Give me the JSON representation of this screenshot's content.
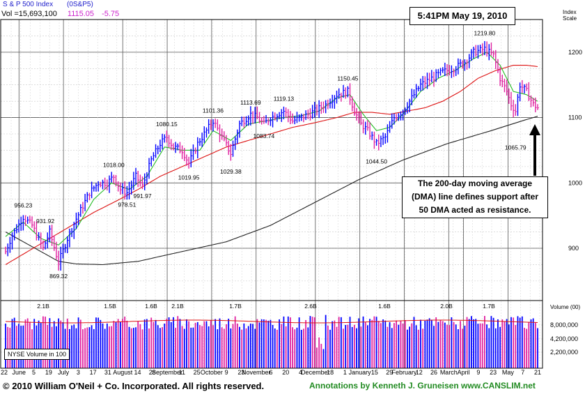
{
  "header": {
    "title": "S & P 500 Index",
    "symbol": "(0S&P5)",
    "vol_label": "Vol =15,693,100",
    "price": "1115.05",
    "change": "-5.75",
    "timestamp": "5:41PM May 19, 2010",
    "index_scale_label": [
      "Index",
      "Scale"
    ],
    "volume_axis_title": "Volume (00)"
  },
  "annotation": {
    "text_lines": [
      "The 200-day moving average",
      "(DMA) line defines support after",
      "50 DMA acted as resistance."
    ]
  },
  "volume_legend": "NYSE Volume in 100",
  "footer": {
    "copyright": "© 2010 William O'Neil + Co. Incorporated. All rights reserved.",
    "credit": "Annotations by Kenneth J. Gruneisen www.CANSLIM.net"
  },
  "colors": {
    "up_bar": "#0000ff",
    "down_bar": "#e020a0",
    "ma50": "#dd1111",
    "ma10": "#22bb22",
    "ma200": "#222222"
  },
  "chart_data": {
    "type": "bar",
    "price_axis": {
      "ticks": [
        900,
        1000,
        1100,
        1200
      ],
      "ylim": [
        820,
        1250
      ]
    },
    "volume_axis": {
      "ticks": [
        "8,000,000",
        "4,200,000",
        "2,200,000"
      ]
    },
    "date_ticks": [
      "22",
      "June",
      "5",
      "19",
      "July",
      "3",
      "17",
      "31",
      "August",
      "14",
      "28",
      "September",
      "11",
      "25",
      "October",
      "9",
      "23",
      "November",
      "6",
      "20",
      "4",
      "December",
      "18",
      "1",
      "January",
      "15",
      "29",
      "February",
      "12",
      "26",
      "March",
      "April",
      "9",
      "23",
      "May",
      "7",
      "21"
    ],
    "month_dividers": [
      "June",
      "July",
      "August",
      "September",
      "October",
      "November",
      "December",
      "January",
      "February",
      "March",
      "April",
      "May"
    ],
    "price_labels": [
      {
        "label": "956.23",
        "date_index": 8,
        "value": 956.23,
        "pos": "top"
      },
      {
        "label": "931.92",
        "date_index": 18,
        "value": 931.92,
        "pos": "top"
      },
      {
        "label": "869.32",
        "date_index": 24,
        "value": 869.32,
        "pos": "bottom"
      },
      {
        "label": "1018.00",
        "date_index": 49,
        "value": 1018.0,
        "pos": "top"
      },
      {
        "label": "978.51",
        "date_index": 55,
        "value": 978.51,
        "pos": "bottom"
      },
      {
        "label": "991.97",
        "date_index": 62,
        "value": 991.97,
        "pos": "bottom"
      },
      {
        "label": "1080.15",
        "date_index": 73,
        "value": 1080.15,
        "pos": "top"
      },
      {
        "label": "1019.95",
        "date_index": 83,
        "value": 1019.95,
        "pos": "bottom"
      },
      {
        "label": "1101.36",
        "date_index": 94,
        "value": 1101.36,
        "pos": "top"
      },
      {
        "label": "1029.38",
        "date_index": 102,
        "value": 1029.38,
        "pos": "bottom"
      },
      {
        "label": "1113.69",
        "date_index": 111,
        "value": 1113.69,
        "pos": "top"
      },
      {
        "label": "1083.74",
        "date_index": 117,
        "value": 1083.74,
        "pos": "bottom"
      },
      {
        "label": "1119.13",
        "date_index": 126,
        "value": 1119.13,
        "pos": "top"
      },
      {
        "label": "1150.45",
        "date_index": 155,
        "value": 1150.45,
        "pos": "top"
      },
      {
        "label": "1044.50",
        "date_index": 168,
        "value": 1044.5,
        "pos": "bottom"
      },
      {
        "label": "1219.80",
        "date_index": 217,
        "value": 1219.8,
        "pos": "top"
      },
      {
        "label": "1065.79",
        "date_index": 231,
        "value": 1065.79,
        "pos": "bottom"
      }
    ],
    "volume_labels": [
      "2.1B",
      "1.5B",
      "1.6B",
      "2.1B",
      "1.7B",
      "2.6B",
      "1.6B",
      "2.0B",
      "1.7B"
    ],
    "anchors": [
      [
        0,
        895
      ],
      [
        3,
        920
      ],
      [
        8,
        948
      ],
      [
        12,
        935
      ],
      [
        17,
        900
      ],
      [
        20,
        925
      ],
      [
        24,
        878
      ],
      [
        28,
        915
      ],
      [
        32,
        945
      ],
      [
        38,
        985
      ],
      [
        42,
        1000
      ],
      [
        46,
        1000
      ],
      [
        49,
        1010
      ],
      [
        52,
        990
      ],
      [
        55,
        985
      ],
      [
        59,
        1010
      ],
      [
        62,
        995
      ],
      [
        66,
        1035
      ],
      [
        70,
        1060
      ],
      [
        73,
        1070
      ],
      [
        76,
        1055
      ],
      [
        80,
        1050
      ],
      [
        83,
        1030
      ],
      [
        87,
        1060
      ],
      [
        91,
        1080
      ],
      [
        94,
        1095
      ],
      [
        98,
        1070
      ],
      [
        102,
        1045
      ],
      [
        106,
        1090
      ],
      [
        111,
        1105
      ],
      [
        114,
        1100
      ],
      [
        117,
        1090
      ],
      [
        120,
        1100
      ],
      [
        126,
        1110
      ],
      [
        130,
        1095
      ],
      [
        134,
        1100
      ],
      [
        140,
        1110
      ],
      [
        145,
        1120
      ],
      [
        150,
        1135
      ],
      [
        155,
        1140
      ],
      [
        158,
        1110
      ],
      [
        161,
        1090
      ],
      [
        164,
        1080
      ],
      [
        168,
        1060
      ],
      [
        172,
        1070
      ],
      [
        176,
        1100
      ],
      [
        180,
        1110
      ],
      [
        184,
        1130
      ],
      [
        188,
        1150
      ],
      [
        193,
        1160
      ],
      [
        198,
        1170
      ],
      [
        203,
        1175
      ],
      [
        208,
        1185
      ],
      [
        212,
        1200
      ],
      [
        217,
        1205
      ],
      [
        221,
        1195
      ],
      [
        224,
        1160
      ],
      [
        227,
        1140
      ],
      [
        229,
        1120
      ],
      [
        231,
        1110
      ],
      [
        233,
        1150
      ],
      [
        236,
        1140
      ],
      [
        239,
        1120
      ],
      [
        241,
        1115
      ]
    ],
    "ma10_anchors": [
      [
        0,
        918
      ],
      [
        8,
        940
      ],
      [
        16,
        915
      ],
      [
        24,
        905
      ],
      [
        32,
        930
      ],
      [
        40,
        975
      ],
      [
        48,
        1000
      ],
      [
        56,
        990
      ],
      [
        64,
        1010
      ],
      [
        72,
        1055
      ],
      [
        80,
        1050
      ],
      [
        88,
        1050
      ],
      [
        94,
        1080
      ],
      [
        102,
        1065
      ],
      [
        110,
        1090
      ],
      [
        118,
        1095
      ],
      [
        126,
        1100
      ],
      [
        134,
        1103
      ],
      [
        142,
        1110
      ],
      [
        150,
        1130
      ],
      [
        156,
        1135
      ],
      [
        162,
        1105
      ],
      [
        168,
        1080
      ],
      [
        174,
        1085
      ],
      [
        180,
        1105
      ],
      [
        188,
        1140
      ],
      [
        196,
        1160
      ],
      [
        204,
        1173
      ],
      [
        212,
        1190
      ],
      [
        218,
        1200
      ],
      [
        224,
        1180
      ],
      [
        230,
        1140
      ],
      [
        236,
        1135
      ],
      [
        241,
        1125
      ]
    ],
    "ma50_anchors": [
      [
        0,
        875
      ],
      [
        10,
        895
      ],
      [
        20,
        915
      ],
      [
        30,
        935
      ],
      [
        40,
        955
      ],
      [
        50,
        972
      ],
      [
        60,
        990
      ],
      [
        70,
        1010
      ],
      [
        80,
        1025
      ],
      [
        90,
        1040
      ],
      [
        100,
        1055
      ],
      [
        110,
        1065
      ],
      [
        120,
        1075
      ],
      [
        130,
        1085
      ],
      [
        140,
        1092
      ],
      [
        150,
        1100
      ],
      [
        158,
        1108
      ],
      [
        166,
        1108
      ],
      [
        174,
        1105
      ],
      [
        182,
        1110
      ],
      [
        190,
        1115
      ],
      [
        198,
        1125
      ],
      [
        206,
        1140
      ],
      [
        214,
        1160
      ],
      [
        222,
        1172
      ],
      [
        230,
        1180
      ],
      [
        236,
        1180
      ],
      [
        241,
        1178
      ]
    ],
    "ma200_anchors": [
      [
        0,
        925
      ],
      [
        8,
        910
      ],
      [
        16,
        895
      ],
      [
        24,
        880
      ],
      [
        32,
        876
      ],
      [
        44,
        875
      ],
      [
        60,
        880
      ],
      [
        80,
        895
      ],
      [
        100,
        910
      ],
      [
        120,
        935
      ],
      [
        140,
        970
      ],
      [
        160,
        1005
      ],
      [
        180,
        1035
      ],
      [
        200,
        1060
      ],
      [
        220,
        1080
      ],
      [
        234,
        1095
      ],
      [
        241,
        1102
      ]
    ]
  }
}
